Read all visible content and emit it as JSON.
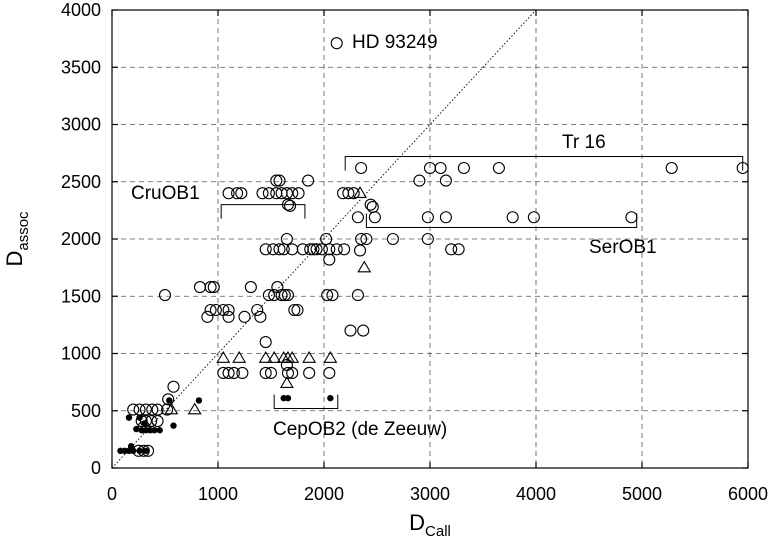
{
  "chart_data": {
    "type": "scatter",
    "title": "",
    "xlabel": {
      "main": "D",
      "sub": "Call"
    },
    "ylabel": {
      "main": "D",
      "sub": "assoc"
    },
    "xlim": [
      0,
      6000
    ],
    "ylim": [
      0,
      4000
    ],
    "xticks": [
      0,
      1000,
      2000,
      3000,
      4000,
      5000,
      6000
    ],
    "yticks": [
      0,
      500,
      1000,
      1500,
      2000,
      2500,
      3000,
      3500,
      4000
    ],
    "grid": true,
    "reference_line": "y = x",
    "series": [
      {
        "marker": "open-circle",
        "points": [
          [
            2120,
            3710
          ],
          [
            2350,
            2620
          ],
          [
            3000,
            2620
          ],
          [
            3100,
            2620
          ],
          [
            3320,
            2620
          ],
          [
            3650,
            2620
          ],
          [
            5280,
            2620
          ],
          [
            5950,
            2620
          ],
          [
            2900,
            2510
          ],
          [
            3150,
            2510
          ],
          [
            1850,
            2510
          ],
          [
            1550,
            2510
          ],
          [
            1580,
            2510
          ],
          [
            1100,
            2400
          ],
          [
            1180,
            2400
          ],
          [
            1220,
            2400
          ],
          [
            1420,
            2400
          ],
          [
            1480,
            2400
          ],
          [
            1550,
            2400
          ],
          [
            1600,
            2400
          ],
          [
            1650,
            2400
          ],
          [
            1700,
            2400
          ],
          [
            1760,
            2400
          ],
          [
            2180,
            2400
          ],
          [
            2230,
            2400
          ],
          [
            2280,
            2400
          ],
          [
            1660,
            2300
          ],
          [
            1680,
            2290
          ],
          [
            2440,
            2300
          ],
          [
            2460,
            2280
          ],
          [
            2320,
            2190
          ],
          [
            2480,
            2190
          ],
          [
            2980,
            2190
          ],
          [
            3150,
            2190
          ],
          [
            3780,
            2190
          ],
          [
            3980,
            2190
          ],
          [
            4900,
            2190
          ],
          [
            2350,
            2000
          ],
          [
            2400,
            2000
          ],
          [
            2650,
            2000
          ],
          [
            2980,
            2000
          ],
          [
            1650,
            2000
          ],
          [
            2020,
            2000
          ],
          [
            3200,
            1910
          ],
          [
            3270,
            1910
          ],
          [
            1450,
            1910
          ],
          [
            1520,
            1910
          ],
          [
            1580,
            1910
          ],
          [
            1620,
            1910
          ],
          [
            1700,
            1910
          ],
          [
            1800,
            1910
          ],
          [
            1870,
            1910
          ],
          [
            1900,
            1910
          ],
          [
            1930,
            1910
          ],
          [
            1980,
            1910
          ],
          [
            2050,
            1910
          ],
          [
            2120,
            1910
          ],
          [
            2190,
            1910
          ],
          [
            2050,
            1820
          ],
          [
            2340,
            1900
          ],
          [
            500,
            1510
          ],
          [
            1480,
            1510
          ],
          [
            1530,
            1510
          ],
          [
            1600,
            1510
          ],
          [
            1630,
            1510
          ],
          [
            1660,
            1510
          ],
          [
            2030,
            1510
          ],
          [
            2080,
            1510
          ],
          [
            2320,
            1510
          ],
          [
            830,
            1580
          ],
          [
            930,
            1580
          ],
          [
            960,
            1580
          ],
          [
            1310,
            1580
          ],
          [
            1560,
            1580
          ],
          [
            930,
            1380
          ],
          [
            980,
            1380
          ],
          [
            1050,
            1380
          ],
          [
            1100,
            1380
          ],
          [
            1370,
            1380
          ],
          [
            1720,
            1380
          ],
          [
            1750,
            1380
          ],
          [
            900,
            1320
          ],
          [
            1100,
            1320
          ],
          [
            1250,
            1320
          ],
          [
            1400,
            1320
          ],
          [
            2250,
            1200
          ],
          [
            2370,
            1200
          ],
          [
            1450,
            1100
          ],
          [
            1050,
            830
          ],
          [
            1100,
            830
          ],
          [
            1150,
            830
          ],
          [
            1230,
            830
          ],
          [
            1450,
            830
          ],
          [
            1500,
            830
          ],
          [
            1660,
            830
          ],
          [
            1700,
            830
          ],
          [
            1860,
            830
          ],
          [
            2050,
            830
          ],
          [
            1650,
            900
          ],
          [
            580,
            710
          ],
          [
            530,
            600
          ],
          [
            200,
            510
          ],
          [
            260,
            510
          ],
          [
            320,
            510
          ],
          [
            380,
            510
          ],
          [
            430,
            510
          ],
          [
            520,
            510
          ],
          [
            280,
            410
          ],
          [
            320,
            410
          ],
          [
            370,
            410
          ],
          [
            430,
            410
          ],
          [
            300,
            360
          ],
          [
            250,
            150
          ],
          [
            300,
            150
          ],
          [
            340,
            150
          ]
        ]
      },
      {
        "marker": "open-triangle",
        "points": [
          [
            2340,
            2400
          ],
          [
            2380,
            1750
          ],
          [
            1050,
            960
          ],
          [
            1200,
            960
          ],
          [
            1450,
            960
          ],
          [
            1530,
            960
          ],
          [
            1620,
            960
          ],
          [
            1660,
            960
          ],
          [
            1700,
            960
          ],
          [
            1860,
            960
          ],
          [
            2060,
            960
          ],
          [
            1650,
            740
          ],
          [
            780,
            510
          ],
          [
            560,
            510
          ]
        ]
      },
      {
        "marker": "filled-dot",
        "points": [
          [
            1620,
            610
          ],
          [
            1660,
            610
          ],
          [
            2060,
            610
          ],
          [
            820,
            590
          ],
          [
            540,
            590
          ],
          [
            580,
            370
          ],
          [
            160,
            440
          ],
          [
            260,
            440
          ],
          [
            230,
            340
          ],
          [
            280,
            330
          ],
          [
            320,
            330
          ],
          [
            360,
            330
          ],
          [
            400,
            330
          ],
          [
            450,
            330
          ],
          [
            310,
            390
          ],
          [
            80,
            150
          ],
          [
            120,
            150
          ],
          [
            160,
            150
          ],
          [
            180,
            190
          ],
          [
            200,
            150
          ],
          [
            260,
            150
          ],
          [
            320,
            150
          ]
        ]
      }
    ],
    "annotations": {
      "hd": "HD 93249",
      "tr16": "Tr 16",
      "cru": "CruOB1",
      "ser": "SerOB1",
      "cep": "CepOB2 (de Zeeuw)"
    },
    "groups": {
      "tr16": {
        "x_range": [
          2200,
          5950
        ],
        "y": 2720
      },
      "cru": {
        "x_range": [
          1030,
          1820
        ],
        "y": 2300
      },
      "ser": {
        "x_range": [
          2400,
          4950
        ],
        "y": 2100
      },
      "cep": {
        "x_range": [
          1530,
          2130
        ],
        "y": 520
      }
    }
  }
}
